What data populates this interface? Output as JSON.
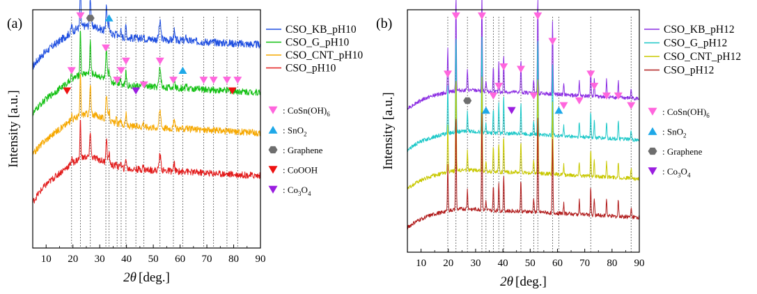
{
  "chart_data": [
    {
      "type": "line",
      "panel_label": "(a)",
      "xlabel_symbol": "2θ",
      "xlabel_unit": "[deg.]",
      "ylabel": "Intensity [a.u.]",
      "xlim": [
        5,
        90
      ],
      "x_ticks": [
        10,
        20,
        30,
        40,
        50,
        60,
        70,
        80,
        90
      ],
      "series": [
        {
          "name": "CSO_KB_pH10",
          "color": "#1f4fe0",
          "baseline": 0.78,
          "rise": 0.12,
          "noise": 0.016,
          "scale": 0.55
        },
        {
          "name": "CSO_G_pH10",
          "color": "#12c012",
          "baseline": 0.58,
          "rise": 0.12,
          "noise": 0.014,
          "scale": 0.6
        },
        {
          "name": "CSO_CNT_pH10",
          "color": "#f6a800",
          "baseline": 0.41,
          "rise": 0.12,
          "noise": 0.014,
          "scale": 0.55
        },
        {
          "name": "CSO_pH10",
          "color": "#e21b1b",
          "baseline": 0.21,
          "rise": 0.14,
          "noise": 0.014,
          "scale": 0.5
        }
      ],
      "peaks": [
        {
          "x": 19.5,
          "h": 0.05,
          "w": 0.3
        },
        {
          "x": 22.8,
          "h": 0.33,
          "w": 0.25
        },
        {
          "x": 26.5,
          "h": 0.22,
          "w": 0.3
        },
        {
          "x": 32.5,
          "h": 0.2,
          "w": 0.35
        },
        {
          "x": 33.5,
          "h": 0.08,
          "w": 0.4
        },
        {
          "x": 36.2,
          "h": 0.04,
          "w": 0.3
        },
        {
          "x": 37.8,
          "h": 0.05,
          "w": 0.3
        },
        {
          "x": 39.8,
          "h": 0.09,
          "w": 0.3
        },
        {
          "x": 46.2,
          "h": 0.03,
          "w": 0.3
        },
        {
          "x": 52.5,
          "h": 0.13,
          "w": 0.5
        },
        {
          "x": 57.8,
          "h": 0.07,
          "w": 0.3
        },
        {
          "x": 62.3,
          "h": 0.03,
          "w": 0.3
        }
      ],
      "markers": [
        {
          "type": "CoSn(OH)6",
          "x": 22.8,
          "level": 0.975
        },
        {
          "type": "CoSn(OH)6",
          "x": 19.5,
          "level": 0.745
        },
        {
          "type": "CoSn(OH)6",
          "x": 32.3,
          "level": 0.84
        },
        {
          "type": "CoSn(OH)6",
          "x": 36.5,
          "level": 0.705
        },
        {
          "type": "CoSn(OH)6",
          "x": 38.0,
          "level": 0.745
        },
        {
          "type": "CoSn(OH)6",
          "x": 39.8,
          "level": 0.785
        },
        {
          "type": "CoSn(OH)6",
          "x": 46.5,
          "level": 0.685
        },
        {
          "type": "CoSn(OH)6",
          "x": 52.5,
          "level": 0.785
        },
        {
          "type": "CoSn(OH)6",
          "x": 57.5,
          "level": 0.705
        },
        {
          "type": "CoSn(OH)6",
          "x": 68.8,
          "level": 0.705
        },
        {
          "type": "CoSn(OH)6",
          "x": 72.5,
          "level": 0.705
        },
        {
          "type": "CoSn(OH)6",
          "x": 77.5,
          "level": 0.705
        },
        {
          "type": "CoSn(OH)6",
          "x": 81.5,
          "level": 0.705
        },
        {
          "type": "SnO2",
          "x": 33.5,
          "level": 0.965
        },
        {
          "type": "SnO2",
          "x": 61.0,
          "level": 0.745
        },
        {
          "type": "Graphene",
          "x": 26.5,
          "level": 0.965
        },
        {
          "type": "CoOOH",
          "x": 17.8,
          "level": 0.66
        },
        {
          "type": "CoOOH",
          "x": 79.5,
          "level": 0.66
        },
        {
          "type": "Co3O4",
          "x": 43.5,
          "level": 0.66
        }
      ],
      "ref_lines": [
        19.5,
        22.8,
        26.5,
        32.3,
        33.5,
        36.5,
        38.0,
        39.8,
        43.5,
        46.5,
        52.5,
        57.5,
        61.0,
        68.8,
        72.5,
        77.5,
        81.5
      ],
      "marker_legend": [
        {
          "type": "CoSn(OH)6",
          "label": ": CoSn(OH)",
          "sub": "6"
        },
        {
          "type": "SnO2",
          "label": ": SnO",
          "sub": "2"
        },
        {
          "type": "Graphene",
          "label": ": Graphene",
          "sub": ""
        },
        {
          "type": "CoOOH",
          "label": ": CoOOH",
          "sub": ""
        },
        {
          "type": "Co3O4",
          "label": ": Co",
          "sub": "3",
          "label2": "O",
          "sub2": "4"
        }
      ]
    },
    {
      "type": "line",
      "panel_label": "(b)",
      "xlabel_symbol": "2θ",
      "xlabel_unit": "[deg.]",
      "ylabel": "Intensity [a.u.]",
      "xlim": [
        5,
        90
      ],
      "x_ticks": [
        10,
        20,
        30,
        40,
        50,
        60,
        70,
        80,
        90
      ],
      "series": [
        {
          "name": "CSO_KB_pH12",
          "color": "#8a2be2",
          "baseline": 0.61,
          "rise": 0.07,
          "noise": 0.008,
          "scale": 1.0
        },
        {
          "name": "CSO_G_pH12",
          "color": "#1cc8c8",
          "baseline": 0.44,
          "rise": 0.07,
          "noise": 0.008,
          "scale": 1.0
        },
        {
          "name": "CSO_CNT_pH12",
          "color": "#c8c800",
          "baseline": 0.28,
          "rise": 0.07,
          "noise": 0.008,
          "scale": 1.0
        },
        {
          "name": "CSO_pH12",
          "color": "#b01a1a",
          "baseline": 0.12,
          "rise": 0.07,
          "noise": 0.008,
          "scale": 1.0
        }
      ],
      "peaks": [
        {
          "x": 19.8,
          "h": 0.19,
          "w": 0.2
        },
        {
          "x": 22.8,
          "h": 0.4,
          "w": 0.2
        },
        {
          "x": 27.0,
          "h": 0.08,
          "w": 0.2
        },
        {
          "x": 32.3,
          "h": 0.4,
          "w": 0.2
        },
        {
          "x": 33.8,
          "h": 0.04,
          "w": 0.2
        },
        {
          "x": 36.5,
          "h": 0.1,
          "w": 0.2
        },
        {
          "x": 38.5,
          "h": 0.12,
          "w": 0.2
        },
        {
          "x": 40.3,
          "h": 0.15,
          "w": 0.2
        },
        {
          "x": 46.6,
          "h": 0.13,
          "w": 0.2
        },
        {
          "x": 51.3,
          "h": 0.06,
          "w": 0.2
        },
        {
          "x": 52.8,
          "h": 0.4,
          "w": 0.2
        },
        {
          "x": 58.2,
          "h": 0.3,
          "w": 0.2
        },
        {
          "x": 62.3,
          "h": 0.04,
          "w": 0.2
        },
        {
          "x": 68.0,
          "h": 0.06,
          "w": 0.2
        },
        {
          "x": 72.2,
          "h": 0.11,
          "w": 0.2
        },
        {
          "x": 73.5,
          "h": 0.07,
          "w": 0.2
        },
        {
          "x": 78.0,
          "h": 0.07,
          "w": 0.2
        },
        {
          "x": 82.3,
          "h": 0.07,
          "w": 0.2
        },
        {
          "x": 87.0,
          "h": 0.04,
          "w": 0.2
        }
      ],
      "markers": [
        {
          "type": "CoSn(OH)6",
          "x": 22.8,
          "level": 0.975
        },
        {
          "type": "CoSn(OH)6",
          "x": 32.3,
          "level": 0.975
        },
        {
          "type": "CoSn(OH)6",
          "x": 52.8,
          "level": 0.975
        },
        {
          "type": "CoSn(OH)6",
          "x": 58.2,
          "level": 0.87
        },
        {
          "type": "CoSn(OH)6",
          "x": 19.8,
          "level": 0.735
        },
        {
          "type": "CoSn(OH)6",
          "x": 40.3,
          "level": 0.765
        },
        {
          "type": "CoSn(OH)6",
          "x": 46.6,
          "level": 0.755
        },
        {
          "type": "CoSn(OH)6",
          "x": 38.5,
          "level": 0.685
        },
        {
          "type": "CoSn(OH)6",
          "x": 36.5,
          "level": 0.645
        },
        {
          "type": "CoSn(OH)6",
          "x": 51.3,
          "level": 0.645
        },
        {
          "type": "CoSn(OH)6",
          "x": 62.3,
          "level": 0.605
        },
        {
          "type": "CoSn(OH)6",
          "x": 68.0,
          "level": 0.625
        },
        {
          "type": "CoSn(OH)6",
          "x": 72.2,
          "level": 0.735
        },
        {
          "type": "CoSn(OH)6",
          "x": 73.5,
          "level": 0.685
        },
        {
          "type": "CoSn(OH)6",
          "x": 78.0,
          "level": 0.645
        },
        {
          "type": "CoSn(OH)6",
          "x": 82.3,
          "level": 0.645
        },
        {
          "type": "CoSn(OH)6",
          "x": 87.0,
          "level": 0.605
        },
        {
          "type": "SnO2",
          "x": 33.8,
          "level": 0.585
        },
        {
          "type": "SnO2",
          "x": 60.5,
          "level": 0.585
        },
        {
          "type": "Graphene",
          "x": 27.0,
          "level": 0.625
        },
        {
          "type": "Co3O4",
          "x": 43.2,
          "level": 0.585
        }
      ],
      "ref_lines": [
        19.8,
        22.8,
        27.0,
        32.3,
        33.8,
        36.5,
        38.5,
        40.3,
        46.6,
        51.3,
        52.8,
        58.2,
        60.5,
        72.2,
        87.0
      ],
      "marker_legend": [
        {
          "type": "CoSn(OH)6",
          "label": ": CoSn(OH)",
          "sub": "6"
        },
        {
          "type": "SnO2",
          "label": ": SnO",
          "sub": "2"
        },
        {
          "type": "Graphene",
          "label": ": Graphene",
          "sub": ""
        },
        {
          "type": "Co3O4",
          "label": ": Co",
          "sub": "3",
          "label2": "O",
          "sub2": "4"
        }
      ]
    }
  ],
  "marker_styles": {
    "CoSn(OH)6": {
      "shape": "triangle-down",
      "color": "#ff66dd"
    },
    "SnO2": {
      "shape": "triangle-up",
      "color": "#1ea8e8"
    },
    "Graphene": {
      "shape": "hexagon",
      "color": "#6e6e6e"
    },
    "CoOOH": {
      "shape": "triangle-down",
      "color": "#ee1111"
    },
    "Co3O4": {
      "shape": "triangle-down",
      "color": "#9a1ee0"
    }
  }
}
